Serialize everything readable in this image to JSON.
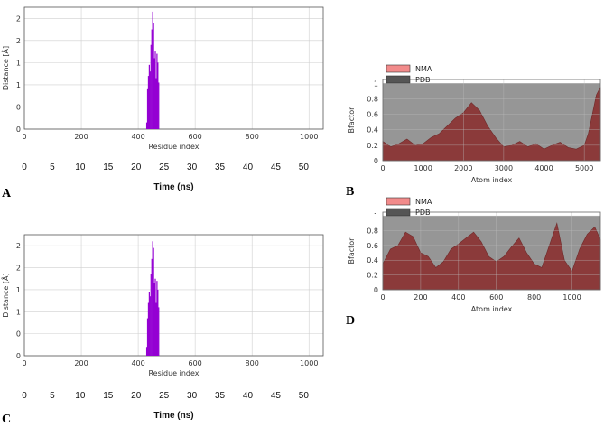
{
  "figure": {
    "panel_letters": [
      "A",
      "B",
      "C",
      "D"
    ]
  },
  "chart_data": [
    {
      "id": "A",
      "type": "bar",
      "xlabel": "Residue index",
      "ylabel": "Distance [Å]",
      "xlim": [
        0,
        1050
      ],
      "ylim": [
        0,
        2.75
      ],
      "x_ticks": [
        0,
        200,
        400,
        600,
        800,
        1000
      ],
      "y_tick_labels": [
        "0",
        "0",
        "1",
        "1",
        "2",
        "2"
      ],
      "y_tick_values": [
        0,
        0.5,
        1,
        1.5,
        2,
        2.5
      ],
      "color": "#9400d3",
      "residues": [
        430,
        433,
        436,
        439,
        442,
        445,
        448,
        451,
        454,
        457,
        460,
        463,
        466,
        469,
        472
      ],
      "values": [
        0.15,
        0.9,
        1.2,
        1.45,
        1.3,
        1.9,
        2.25,
        2.65,
        2.4,
        1.6,
        1.75,
        1.15,
        1.7,
        1.5,
        1.05
      ],
      "secondary_axis": {
        "label": "Time (ns)",
        "ticks": [
          0,
          5,
          10,
          15,
          20,
          25,
          30,
          35,
          40,
          45,
          50
        ],
        "range": [
          0,
          53.5
        ]
      }
    },
    {
      "id": "B",
      "type": "area",
      "xlabel": "Atom index",
      "ylabel": "Bfactor",
      "xlim": [
        0,
        5400
      ],
      "ylim": [
        0,
        1.05
      ],
      "x_ticks": [
        0,
        1000,
        2000,
        3000,
        4000,
        5000
      ],
      "y_ticks": [
        0,
        0.2,
        0.4,
        0.6,
        0.8,
        1
      ],
      "legend": [
        "NMA",
        "PDB"
      ],
      "legend_colors": [
        "#f28b8b",
        "#555555"
      ],
      "series": [
        {
          "name": "NMA",
          "x": [
            0,
            200,
            400,
            600,
            800,
            1000,
            1200,
            1400,
            1600,
            1800,
            2000,
            2200,
            2400,
            2600,
            2800,
            3000,
            3200,
            3400,
            3600,
            3800,
            4000,
            4200,
            4400,
            4600,
            4800,
            5000,
            5100,
            5200,
            5300,
            5400
          ],
          "values": [
            0.25,
            0.18,
            0.22,
            0.28,
            0.2,
            0.22,
            0.3,
            0.35,
            0.45,
            0.55,
            0.62,
            0.75,
            0.65,
            0.45,
            0.3,
            0.18,
            0.2,
            0.25,
            0.18,
            0.22,
            0.15,
            0.2,
            0.24,
            0.17,
            0.15,
            0.2,
            0.35,
            0.6,
            0.85,
            0.95
          ]
        }
      ]
    },
    {
      "id": "C",
      "type": "bar",
      "xlabel": "Residue index",
      "ylabel": "Distance [Å]",
      "xlim": [
        0,
        1050
      ],
      "ylim": [
        0,
        2.75
      ],
      "x_ticks": [
        0,
        200,
        400,
        600,
        800,
        1000
      ],
      "y_tick_labels": [
        "0",
        "0",
        "1",
        "1",
        "2",
        "2"
      ],
      "y_tick_values": [
        0,
        0.5,
        1,
        1.5,
        2,
        2.5
      ],
      "color": "#9400d3",
      "residues": [
        430,
        433,
        436,
        439,
        442,
        445,
        448,
        451,
        454,
        457,
        460,
        463,
        466,
        469,
        472
      ],
      "values": [
        0.2,
        0.85,
        1.2,
        1.45,
        1.35,
        1.85,
        2.2,
        2.6,
        2.45,
        1.65,
        1.75,
        1.2,
        1.7,
        1.5,
        1.1
      ],
      "secondary_axis": {
        "label": "Time (ns)",
        "ticks": [
          0,
          5,
          10,
          15,
          20,
          25,
          30,
          35,
          40,
          45,
          50
        ],
        "range": [
          0,
          53.5
        ]
      }
    },
    {
      "id": "D",
      "type": "area",
      "xlabel": "Atom index",
      "ylabel": "Bfactor",
      "xlim": [
        0,
        1150
      ],
      "ylim": [
        0,
        1.05
      ],
      "x_ticks": [
        0,
        200,
        400,
        600,
        800,
        1000
      ],
      "y_ticks": [
        0,
        0.2,
        0.4,
        0.6,
        0.8,
        1
      ],
      "legend": [
        "NMA",
        "PDB"
      ],
      "legend_colors": [
        "#f28b8b",
        "#555555"
      ],
      "series": [
        {
          "name": "NMA",
          "x": [
            0,
            40,
            80,
            120,
            160,
            200,
            240,
            280,
            320,
            360,
            400,
            440,
            480,
            520,
            560,
            600,
            640,
            680,
            720,
            760,
            800,
            840,
            880,
            920,
            960,
            1000,
            1040,
            1080,
            1120,
            1150
          ],
          "values": [
            0.35,
            0.55,
            0.6,
            0.78,
            0.72,
            0.5,
            0.45,
            0.3,
            0.38,
            0.55,
            0.62,
            0.7,
            0.78,
            0.65,
            0.45,
            0.38,
            0.45,
            0.58,
            0.7,
            0.5,
            0.35,
            0.3,
            0.6,
            0.9,
            0.4,
            0.25,
            0.55,
            0.75,
            0.85,
            0.68
          ]
        }
      ]
    }
  ]
}
